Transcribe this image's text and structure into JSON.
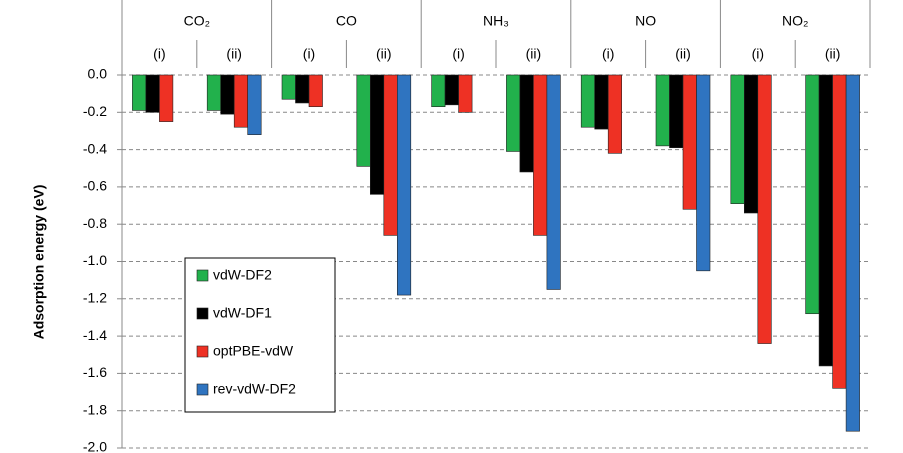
{
  "chart_data": {
    "type": "bar",
    "y_label": "Adsorption energy (eV)",
    "groups": [
      "CO₂",
      "CO",
      "NH₃",
      "NO",
      "NO₂"
    ],
    "categories": [
      "(i)",
      "(ii)",
      "(i)",
      "(ii)",
      "(i)",
      "(ii)",
      "(i)",
      "(ii)",
      "(i)",
      "(ii)"
    ],
    "series": [
      {
        "name": "vdW-DF2",
        "color": "#22b14c",
        "values": [
          -0.19,
          -0.19,
          -0.13,
          -0.49,
          -0.17,
          -0.41,
          -0.28,
          -0.38,
          -0.69,
          -1.28
        ]
      },
      {
        "name": "vdW-DF1",
        "color": "#000000",
        "values": [
          -0.2,
          -0.21,
          -0.15,
          -0.64,
          -0.16,
          -0.52,
          -0.29,
          -0.39,
          -0.74,
          -1.56
        ]
      },
      {
        "name": "optPBE-vdW",
        "color": "#ee3124",
        "values": [
          -0.25,
          -0.28,
          -0.17,
          -0.86,
          -0.2,
          -0.86,
          -0.42,
          -0.72,
          -1.44,
          -1.68
        ]
      },
      {
        "name": "rev-vdW-DF2",
        "color": "#2f74c0",
        "values": [
          null,
          -0.32,
          null,
          -1.18,
          null,
          -1.15,
          null,
          -1.05,
          null,
          -1.91
        ]
      }
    ],
    "ylim": [
      0,
      -2.0
    ],
    "yticks": [
      {
        "value": 0,
        "label": "0.0"
      },
      -0.2,
      -0.4,
      -0.6,
      -0.8,
      {
        "value": -1.0,
        "label": "-1.0"
      },
      -1.2,
      -1.4,
      -1.6,
      -1.8,
      {
        "value": -2.0,
        "label": "-2.0"
      }
    ],
    "grid": true,
    "legend": "lower left"
  }
}
